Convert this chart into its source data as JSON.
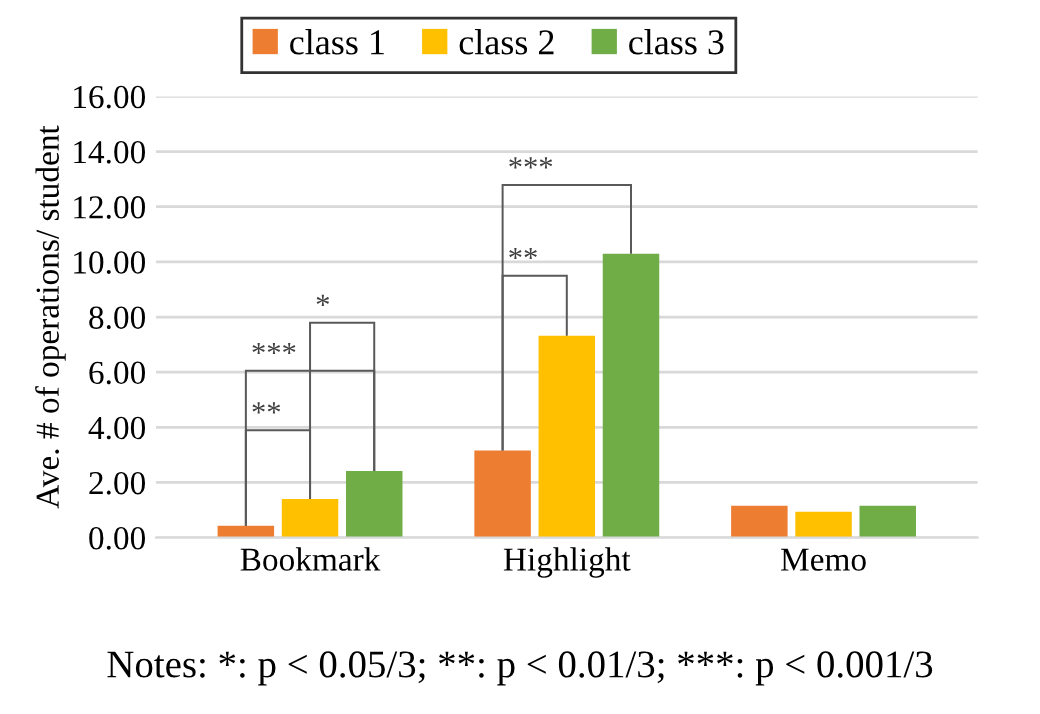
{
  "chart_data": {
    "type": "bar",
    "ylabel": "Ave. # of operations/ student",
    "categories": [
      "Bookmark",
      "Highlight",
      "Memo"
    ],
    "series": [
      {
        "name": "class 1",
        "color": "#ed7d31",
        "values": [
          0.43,
          3.16,
          1.16
        ]
      },
      {
        "name": "class 2",
        "color": "#ffc000",
        "values": [
          1.4,
          7.32,
          0.94
        ]
      },
      {
        "name": "class 3",
        "color": "#70ad47",
        "values": [
          2.42,
          10.29,
          1.16
        ]
      }
    ],
    "ylim": [
      0,
      16
    ],
    "yticks": [
      {
        "value": 0,
        "label": "0.00"
      },
      {
        "value": 2,
        "label": "2.00"
      },
      {
        "value": 4,
        "label": "4.00"
      },
      {
        "value": 6,
        "label": "6.00"
      },
      {
        "value": 8,
        "label": "8.00"
      },
      {
        "value": 10,
        "label": "10.00"
      },
      {
        "value": 12,
        "label": "12.00"
      },
      {
        "value": 14,
        "label": "14.00"
      },
      {
        "value": 16,
        "label": "16.00"
      }
    ],
    "grid": "y",
    "legend": "top",
    "annotations": [
      "**",
      "***",
      "*",
      "**",
      "***",
      "Notes: *: p < 0.05/3; **: p < 0.01/3; ***: p < 0.001/3"
    ]
  }
}
